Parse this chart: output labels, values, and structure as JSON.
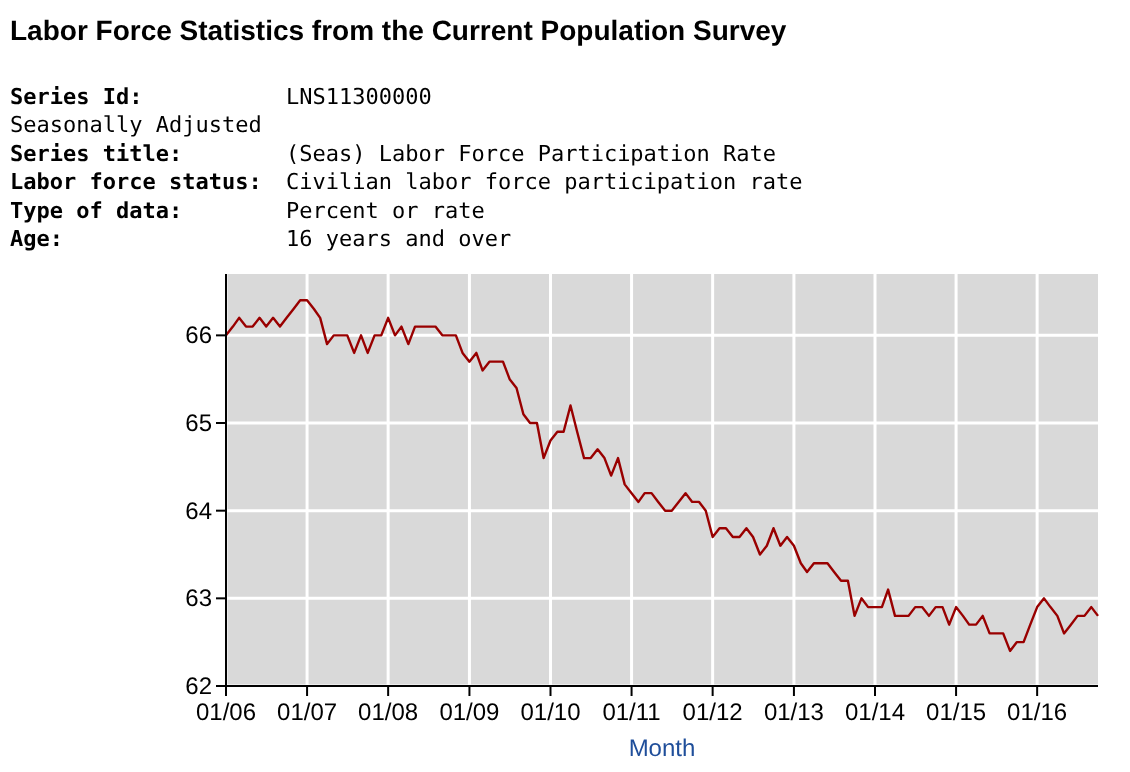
{
  "chart_data": {
    "type": "line",
    "title": "Labor Force Statistics from the Current Population Survey",
    "annotations": [
      "Series Id: LNS11300000",
      "Seasonally Adjusted",
      "Series title: (Seas) Labor Force Participation Rate",
      "Labor force status: Civilian labor force participation rate",
      "Type of data: Percent or rate",
      "Age: 16 years and over"
    ],
    "xlabel": "Month",
    "x": [
      "2006-01",
      "2006-02",
      "2006-03",
      "2006-04",
      "2006-05",
      "2006-06",
      "2006-07",
      "2006-08",
      "2006-09",
      "2006-10",
      "2006-11",
      "2006-12",
      "2007-01",
      "2007-02",
      "2007-03",
      "2007-04",
      "2007-05",
      "2007-06",
      "2007-07",
      "2007-08",
      "2007-09",
      "2007-10",
      "2007-11",
      "2007-12",
      "2008-01",
      "2008-02",
      "2008-03",
      "2008-04",
      "2008-05",
      "2008-06",
      "2008-07",
      "2008-08",
      "2008-09",
      "2008-10",
      "2008-11",
      "2008-12",
      "2009-01",
      "2009-02",
      "2009-03",
      "2009-04",
      "2009-05",
      "2009-06",
      "2009-07",
      "2009-08",
      "2009-09",
      "2009-10",
      "2009-11",
      "2009-12",
      "2010-01",
      "2010-02",
      "2010-03",
      "2010-04",
      "2010-05",
      "2010-06",
      "2010-07",
      "2010-08",
      "2010-09",
      "2010-10",
      "2010-11",
      "2010-12",
      "2011-01",
      "2011-02",
      "2011-03",
      "2011-04",
      "2011-05",
      "2011-06",
      "2011-07",
      "2011-08",
      "2011-09",
      "2011-10",
      "2011-11",
      "2011-12",
      "2012-01",
      "2012-02",
      "2012-03",
      "2012-04",
      "2012-05",
      "2012-06",
      "2012-07",
      "2012-08",
      "2012-09",
      "2012-10",
      "2012-11",
      "2012-12",
      "2013-01",
      "2013-02",
      "2013-03",
      "2013-04",
      "2013-05",
      "2013-06",
      "2013-07",
      "2013-08",
      "2013-09",
      "2013-10",
      "2013-11",
      "2013-12",
      "2014-01",
      "2014-02",
      "2014-03",
      "2014-04",
      "2014-05",
      "2014-06",
      "2014-07",
      "2014-08",
      "2014-09",
      "2014-10",
      "2014-11",
      "2014-12",
      "2015-01",
      "2015-02",
      "2015-03",
      "2015-04",
      "2015-05",
      "2015-06",
      "2015-07",
      "2015-08",
      "2015-09",
      "2015-10",
      "2015-11",
      "2015-12",
      "2016-01",
      "2016-02",
      "2016-03",
      "2016-04",
      "2016-05",
      "2016-06",
      "2016-07",
      "2016-08",
      "2016-09",
      "2016-10"
    ],
    "series": [
      {
        "color": "#990000",
        "values": [
          66.0,
          66.1,
          66.2,
          66.1,
          66.1,
          66.2,
          66.1,
          66.2,
          66.1,
          66.2,
          66.3,
          66.4,
          66.4,
          66.3,
          66.2,
          65.9,
          66.0,
          66.0,
          66.0,
          65.8,
          66.0,
          65.8,
          66.0,
          66.0,
          66.2,
          66.0,
          66.1,
          65.9,
          66.1,
          66.1,
          66.1,
          66.1,
          66.0,
          66.0,
          66.0,
          65.8,
          65.7,
          65.8,
          65.6,
          65.7,
          65.7,
          65.7,
          65.5,
          65.4,
          65.1,
          65.0,
          65.0,
          64.6,
          64.8,
          64.9,
          64.9,
          65.2,
          64.9,
          64.6,
          64.6,
          64.7,
          64.6,
          64.4,
          64.6,
          64.3,
          64.2,
          64.1,
          64.2,
          64.2,
          64.1,
          64.0,
          64.0,
          64.1,
          64.2,
          64.1,
          64.1,
          64.0,
          63.7,
          63.8,
          63.8,
          63.7,
          63.7,
          63.8,
          63.7,
          63.5,
          63.6,
          63.8,
          63.6,
          63.7,
          63.6,
          63.4,
          63.3,
          63.4,
          63.4,
          63.4,
          63.3,
          63.2,
          63.2,
          62.8,
          63.0,
          62.9,
          62.9,
          62.9,
          63.1,
          62.8,
          62.8,
          62.8,
          62.9,
          62.9,
          62.8,
          62.9,
          62.9,
          62.7,
          62.9,
          62.8,
          62.7,
          62.7,
          62.8,
          62.6,
          62.6,
          62.6,
          62.4,
          62.5,
          62.5,
          62.7,
          62.9,
          63.0,
          62.9,
          62.8,
          62.6,
          62.7,
          62.8,
          62.8,
          62.9,
          62.8
        ]
      }
    ],
    "xlim": [
      "2006-01",
      "2016-10"
    ],
    "xticks": [
      {
        "value": "2006-01",
        "label": "01/06"
      },
      {
        "value": "2007-01",
        "label": "01/07"
      },
      {
        "value": "2008-01",
        "label": "01/08"
      },
      {
        "value": "2009-01",
        "label": "01/09"
      },
      {
        "value": "2010-01",
        "label": "01/10"
      },
      {
        "value": "2011-01",
        "label": "01/11"
      },
      {
        "value": "2012-01",
        "label": "01/12"
      },
      {
        "value": "2013-01",
        "label": "01/13"
      },
      {
        "value": "2014-01",
        "label": "01/14"
      },
      {
        "value": "2015-01",
        "label": "01/15"
      },
      {
        "value": "2016-01",
        "label": "01/16"
      }
    ],
    "ylim": [
      62,
      66.7
    ],
    "yticks": [
      62,
      63,
      64,
      65,
      66
    ],
    "grid": true,
    "marker": "none",
    "line_style": "solid"
  }
}
